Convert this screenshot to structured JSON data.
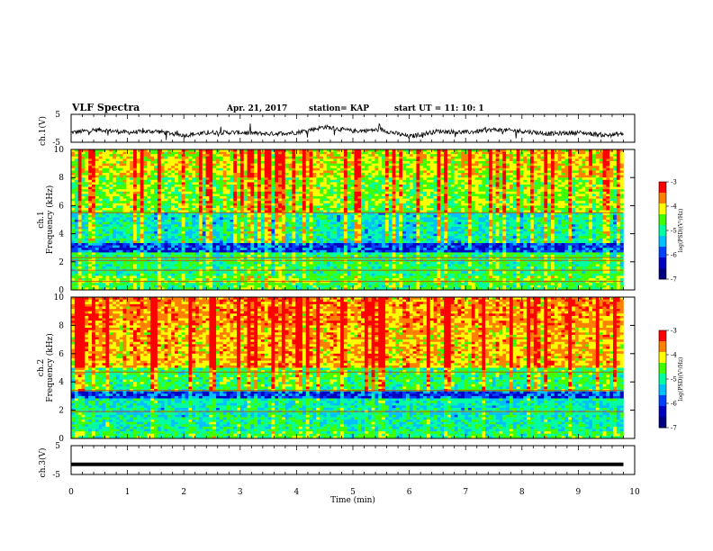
{
  "header": {
    "title": "VLF Spectra",
    "date": "Apr. 21, 2017",
    "station": "station= KAP",
    "start_ut": "start  UT =   11: 10: 1"
  },
  "chart_data": [
    {
      "id": "ch1-waveform",
      "type": "line",
      "ylabel": "ch.1(V)",
      "ylim": [
        -5,
        5
      ],
      "yticks": [
        "5",
        "-5"
      ],
      "xlim": [
        0,
        10
      ],
      "series": [
        {
          "x": [
            0,
            0.5,
            1,
            1.5,
            2,
            2.5,
            3,
            3.5,
            4,
            4.5,
            5,
            5.5,
            6,
            6.5,
            7,
            7.5,
            8,
            8.5,
            9,
            9.5,
            9.8
          ],
          "values": [
            -1.5,
            -0.5,
            -1.5,
            -1.0,
            -2.5,
            -1.5,
            -1.5,
            -2.0,
            -1.5,
            0.5,
            -1.0,
            -0.5,
            -3.0,
            -1.0,
            -1.5,
            -0.5,
            -1.0,
            -2.0,
            -1.5,
            -2.5,
            -2.0
          ]
        }
      ],
      "color": "#000000"
    },
    {
      "id": "ch1-spectrogram",
      "type": "heatmap",
      "ylabel": "ch.1\nFrequency (kHz)",
      "ylim": [
        0,
        10
      ],
      "yticks": [
        "0",
        "2",
        "4",
        "6",
        "8",
        "10"
      ],
      "xlim": [
        0,
        9.8
      ],
      "colorbar": {
        "label": "log(PSD)(V²/Hz)",
        "range": [
          -7,
          -3
        ],
        "ticks": [
          "-3",
          "-4",
          "-5",
          "-6",
          "-7"
        ]
      },
      "bands_khz": [
        {
          "from": 0.0,
          "to": 0.5,
          "level": -5.0
        },
        {
          "from": 0.5,
          "to": 1.0,
          "level": -4.8
        },
        {
          "from": 1.0,
          "to": 2.6,
          "level": -5.1
        },
        {
          "from": 2.6,
          "to": 3.4,
          "level": -6.2
        },
        {
          "from": 3.4,
          "to": 5.5,
          "level": -5.4
        },
        {
          "from": 5.5,
          "to": 8.0,
          "level": -4.7
        },
        {
          "from": 8.0,
          "to": 10.0,
          "level": -4.3
        }
      ],
      "lines_khz": [
        0.6,
        1.4,
        2.1,
        2.3,
        5.5
      ]
    },
    {
      "id": "ch2-spectrogram",
      "type": "heatmap",
      "ylabel": "ch.2\nFrequency (kHz)",
      "ylim": [
        0,
        10
      ],
      "yticks": [
        "0",
        "2",
        "4",
        "6",
        "8",
        "10"
      ],
      "xlim": [
        0,
        9.8
      ],
      "colorbar": {
        "label": "log(PSD)(V²/Hz)",
        "range": [
          -7,
          -3
        ],
        "ticks": [
          "-3",
          "-4",
          "-5",
          "-6",
          "-7"
        ]
      },
      "bands_khz": [
        {
          "from": 0.0,
          "to": 0.5,
          "level": -5.0
        },
        {
          "from": 0.5,
          "to": 1.5,
          "level": -5.3
        },
        {
          "from": 1.5,
          "to": 2.8,
          "level": -5.4
        },
        {
          "from": 2.8,
          "to": 3.4,
          "level": -6.2
        },
        {
          "from": 3.4,
          "to": 5.0,
          "level": -5.0
        },
        {
          "from": 5.0,
          "to": 8.0,
          "level": -4.0
        },
        {
          "from": 8.0,
          "to": 10.0,
          "level": -3.8
        }
      ],
      "lines_khz": [
        1.9,
        3.4,
        4.7
      ]
    },
    {
      "id": "ch3-waveform",
      "type": "line",
      "ylabel": "ch.3(V)",
      "ylim": [
        -5,
        5
      ],
      "yticks": [
        "5",
        "-5"
      ],
      "xlabel": "Time (min)",
      "xlim": [
        0,
        10
      ],
      "xticks": [
        "0",
        "1",
        "2",
        "3",
        "4",
        "5",
        "6",
        "7",
        "8",
        "9",
        "10"
      ],
      "series": [
        {
          "x": [
            0,
            9.8
          ],
          "values": [
            -1.5,
            -1.5
          ]
        }
      ],
      "color": "#000000"
    }
  ],
  "colors": {
    "colormap": [
      "#000080",
      "#0000ff",
      "#00ffff",
      "#00ff00",
      "#ffff00",
      "#ff8000",
      "#ff0000",
      "#ffffff"
    ],
    "frame": "#000000",
    "background": "#ffffff"
  }
}
